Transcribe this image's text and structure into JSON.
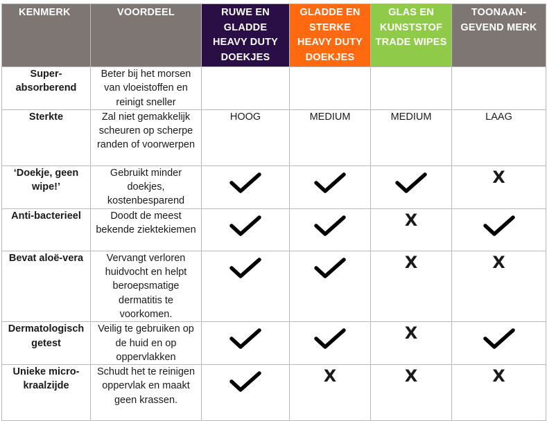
{
  "headers": {
    "kenmerk": "KENMERK",
    "voordeel": "VOORDEEL",
    "col1": "RUWE EN GLADDE HEAVY DUTY DOEKJES",
    "col2": "GLADDE EN STERKE HEAVY DUTY DOEKJES",
    "col3": "GLAS EN KUNSTSTOF TRADE WIPES",
    "col4": "TOONAAN-GEVEND MERK"
  },
  "header_colors": {
    "gray": "#7e7672",
    "col1": "#2a0f47",
    "col2": "#ff6a10",
    "col3": "#8fcb48"
  },
  "rows": [
    {
      "feature": "Super-absorberend",
      "benefit": "Beter bij het morsen van vloeistoffen en reinigt sneller",
      "values": [
        "",
        "",
        "",
        ""
      ]
    },
    {
      "feature": "Sterkte",
      "benefit": "Zal niet gemakkelijk scheuren op scherpe randen of voorwerpen",
      "values": [
        "HOOG",
        "MEDIUM",
        "MEDIUM",
        "LAAG"
      ]
    },
    {
      "feature": "‘Doekje, geen wipe!’",
      "benefit": "Gebruikt minder doekjes, kostenbesparend",
      "values": [
        "check",
        "check",
        "check",
        "X"
      ]
    },
    {
      "feature": "Anti-bacterieel",
      "benefit": "Doodt de meest bekende ziektekiemen",
      "values": [
        "check",
        "check",
        "X",
        "check"
      ]
    },
    {
      "feature": "Bevat aloë-vera",
      "benefit": "Vervangt verloren huidvocht en helpt beroepsmatige dermatitis te voorkomen.",
      "values": [
        "check",
        "check",
        "X",
        "X"
      ]
    },
    {
      "feature": "Dermatologisch getest",
      "benefit": "Veilig te gebruiken op de huid en op oppervlakken",
      "values": [
        "check",
        "check",
        "X",
        "check"
      ]
    },
    {
      "feature": "Unieke micro-kraalzijde",
      "benefit": "Schudt het te reinigen oppervlak en maakt geen krassen.",
      "values": [
        "check",
        "X",
        "X",
        "X"
      ]
    }
  ]
}
